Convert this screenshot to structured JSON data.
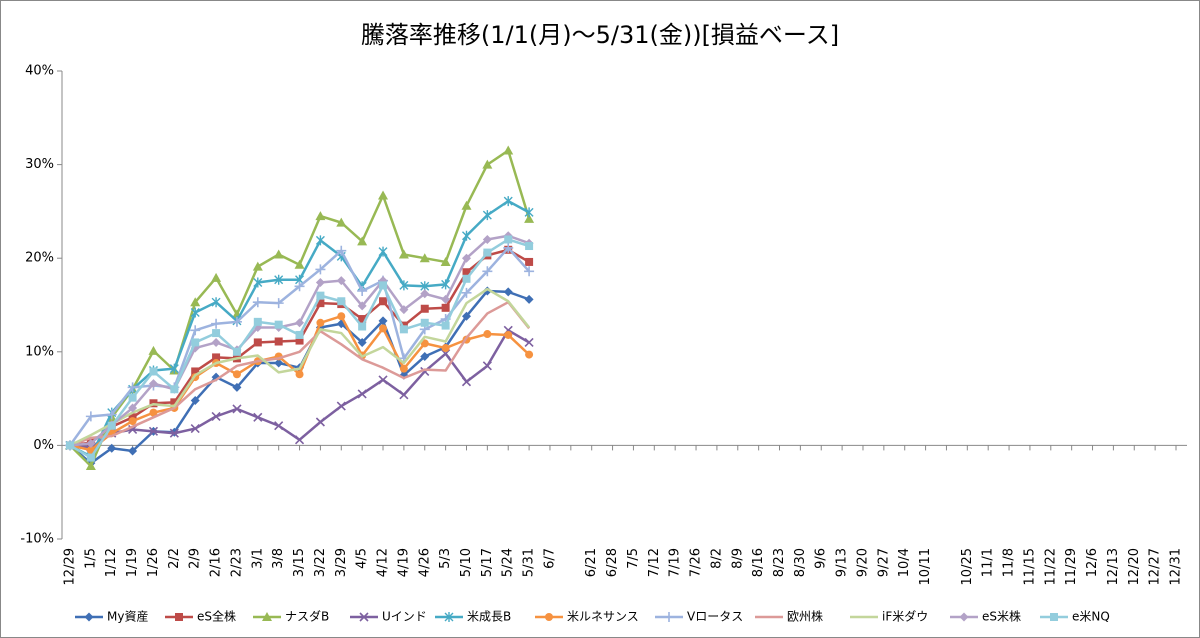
{
  "chart_data": {
    "type": "line",
    "title": "騰落率推移(1/1(月)～5/31(金))[損益ベース]",
    "categories": [
      "12/29",
      "1/5",
      "1/12",
      "1/19",
      "1/26",
      "2/2",
      "2/9",
      "2/16",
      "2/23",
      "3/1",
      "3/8",
      "3/15",
      "3/22",
      "3/29",
      "4/5",
      "4/12",
      "4/19",
      "4/26",
      "5/3",
      "5/10",
      "5/17",
      "5/24",
      "5/31",
      "6/7",
      null,
      "6/21",
      "6/28",
      "7/5",
      "7/12",
      "7/19",
      "7/26",
      "8/2",
      "8/9",
      "8/16",
      "8/23",
      "8/30",
      "9/6",
      "9/13",
      "9/20",
      "9/27",
      "10/4",
      "10/11",
      null,
      "10/25",
      "11/1",
      "11/8",
      "11/15",
      "11/22",
      "11/29",
      "12/6",
      "12/13",
      "12/20",
      "12/27",
      "12/31"
    ],
    "ylim": [
      -10,
      40
    ],
    "yticks": [
      {
        "value": -10,
        "label": "-10%"
      },
      {
        "value": 0,
        "label": "0%"
      },
      {
        "value": 10,
        "label": "10%"
      },
      {
        "value": 20,
        "label": "20%"
      },
      {
        "value": 30,
        "label": "30%"
      },
      {
        "value": 40,
        "label": "40%"
      }
    ],
    "grid": false,
    "legend": "bottom",
    "series": [
      {
        "name": "My資産",
        "color": "#3f6fb5",
        "marker": "diamond",
        "values": [
          0,
          -1.9,
          -0.3,
          -0.6,
          1.5,
          1.4,
          4.8,
          7.3,
          6.2,
          8.8,
          8.8,
          8.3,
          12.6,
          13.0,
          11.0,
          13.3,
          7.5,
          9.5,
          10.5,
          13.8,
          16.5,
          16.4,
          15.6,
          null,
          null,
          null,
          null,
          null,
          null,
          null,
          null,
          null,
          null,
          null,
          null,
          null,
          null,
          null,
          null,
          null,
          null,
          null,
          null,
          null,
          null,
          null,
          null,
          null,
          null,
          null,
          null,
          null,
          null,
          null
        ]
      },
      {
        "name": "eS全株",
        "color": "#be4b48",
        "marker": "square",
        "values": [
          0,
          0.3,
          2.0,
          3.0,
          4.5,
          4.6,
          7.9,
          9.4,
          9.3,
          11.0,
          11.1,
          11.2,
          15.2,
          15.1,
          13.5,
          15.4,
          12.8,
          14.6,
          14.7,
          18.5,
          20.3,
          20.9,
          19.6,
          null,
          null,
          null,
          null,
          null,
          null,
          null,
          null,
          null,
          null,
          null,
          null,
          null,
          null,
          null,
          null,
          null,
          null,
          null,
          null,
          null,
          null,
          null,
          null,
          null,
          null,
          null,
          null,
          null,
          null,
          null
        ]
      },
      {
        "name": "ナスダB",
        "color": "#98b954",
        "marker": "triangle",
        "values": [
          0,
          -2.2,
          3.0,
          6.0,
          10.1,
          8.0,
          15.3,
          17.9,
          14.0,
          19.1,
          20.4,
          19.3,
          24.5,
          23.8,
          21.8,
          26.7,
          20.4,
          20.0,
          19.6,
          25.6,
          30.0,
          31.5,
          24.2,
          null,
          null,
          null,
          null,
          null,
          null,
          null,
          null,
          null,
          null,
          null,
          null,
          null,
          null,
          null,
          null,
          null,
          null,
          null,
          null,
          null,
          null,
          null,
          null,
          null,
          null,
          null,
          null,
          null,
          null,
          null
        ]
      },
      {
        "name": "Uインド",
        "color": "#7d60a0",
        "marker": "x",
        "values": [
          0,
          -0.2,
          1.3,
          1.7,
          1.5,
          1.3,
          1.8,
          3.1,
          3.9,
          3.0,
          2.1,
          0.6,
          2.5,
          4.2,
          5.5,
          7.0,
          5.4,
          7.9,
          9.8,
          6.8,
          8.5,
          12.3,
          11.0,
          null,
          null,
          null,
          null,
          null,
          null,
          null,
          null,
          null,
          null,
          null,
          null,
          null,
          null,
          null,
          null,
          null,
          null,
          null,
          null,
          null,
          null,
          null,
          null,
          null,
          null,
          null,
          null,
          null,
          null,
          null
        ]
      },
      {
        "name": "米成長B",
        "color": "#46aac5",
        "marker": "asterisk",
        "values": [
          0,
          -1.2,
          3.5,
          6.0,
          8.0,
          8.2,
          14.2,
          15.3,
          13.3,
          17.4,
          17.7,
          17.7,
          21.9,
          20.2,
          17.0,
          20.7,
          17.1,
          17.0,
          17.2,
          22.4,
          24.6,
          26.1,
          24.9,
          null,
          null,
          null,
          null,
          null,
          null,
          null,
          null,
          null,
          null,
          null,
          null,
          null,
          null,
          null,
          null,
          null,
          null,
          null,
          null,
          null,
          null,
          null,
          null,
          null,
          null,
          null,
          null,
          null,
          null,
          null
        ]
      },
      {
        "name": "米ルネサンス",
        "color": "#f69240",
        "marker": "circle",
        "values": [
          0,
          -0.5,
          1.3,
          2.6,
          3.5,
          4.0,
          7.3,
          8.8,
          7.6,
          9.0,
          9.5,
          7.6,
          13.1,
          13.8,
          9.6,
          12.5,
          8.2,
          10.9,
          10.4,
          11.3,
          11.9,
          11.8,
          9.7,
          null,
          null,
          null,
          null,
          null,
          null,
          null,
          null,
          null,
          null,
          null,
          null,
          null,
          null,
          null,
          null,
          null,
          null,
          null,
          null,
          null,
          null,
          null,
          null,
          null,
          null,
          null,
          null,
          null,
          null,
          null
        ]
      },
      {
        "name": "Vロータス",
        "color": "#9db3df",
        "marker": "plus",
        "values": [
          0,
          3.1,
          3.3,
          6.2,
          6.4,
          6.2,
          12.3,
          13.0,
          13.2,
          15.3,
          15.2,
          17.0,
          18.8,
          20.8,
          16.5,
          17.6,
          9.3,
          12.4,
          13.5,
          16.3,
          18.6,
          21.1,
          18.6,
          null,
          null,
          null,
          null,
          null,
          null,
          null,
          null,
          null,
          null,
          null,
          null,
          null,
          null,
          null,
          null,
          null,
          null,
          null,
          null,
          null,
          null,
          null,
          null,
          null,
          null,
          null,
          null,
          null,
          null,
          null
        ]
      },
      {
        "name": "欧州株",
        "color": "#dc9a98",
        "marker": "none",
        "values": [
          0,
          0.8,
          1.0,
          2.0,
          3.0,
          4.0,
          6.0,
          7.0,
          8.5,
          9.0,
          9.3,
          10.0,
          12.2,
          10.8,
          9.2,
          8.3,
          7.2,
          8.1,
          8.0,
          11.5,
          14.1,
          15.3,
          12.5,
          null,
          null,
          null,
          null,
          null,
          null,
          null,
          null,
          null,
          null,
          null,
          null,
          null,
          null,
          null,
          null,
          null,
          null,
          null,
          null,
          null,
          null,
          null,
          null,
          null,
          null,
          null,
          null,
          null,
          null,
          null
        ]
      },
      {
        "name": "iF米ダウ",
        "color": "#c3d69b",
        "marker": "none",
        "values": [
          0,
          1.1,
          2.3,
          3.5,
          4.4,
          4.2,
          7.5,
          8.8,
          9.3,
          9.6,
          7.8,
          8.2,
          12.4,
          12.0,
          9.5,
          10.5,
          8.8,
          11.6,
          11.1,
          15.2,
          16.7,
          15.4,
          12.6,
          null,
          null,
          null,
          null,
          null,
          null,
          null,
          null,
          null,
          null,
          null,
          null,
          null,
          null,
          null,
          null,
          null,
          null,
          null,
          null,
          null,
          null,
          null,
          null,
          null,
          null,
          null,
          null,
          null,
          null,
          null
        ]
      },
      {
        "name": "eS米株",
        "color": "#b3a2c7",
        "marker": "diamond",
        "values": [
          0,
          0.2,
          2.2,
          4.0,
          6.6,
          6.0,
          10.4,
          11.0,
          10.2,
          12.6,
          12.6,
          13.1,
          17.4,
          17.6,
          14.9,
          17.6,
          14.5,
          16.2,
          15.6,
          20.0,
          22.0,
          22.4,
          21.6,
          null,
          null,
          null,
          null,
          null,
          null,
          null,
          null,
          null,
          null,
          null,
          null,
          null,
          null,
          null,
          null,
          null,
          null,
          null,
          null,
          null,
          null,
          null,
          null,
          null,
          null,
          null,
          null,
          null,
          null,
          null
        ]
      },
      {
        "name": "e米NQ",
        "color": "#93cddd",
        "marker": "square",
        "values": [
          0,
          -1.3,
          2.1,
          5.1,
          7.9,
          6.0,
          11.0,
          12.0,
          10.0,
          13.2,
          12.9,
          11.8,
          16.0,
          15.4,
          12.7,
          17.1,
          12.4,
          13.1,
          12.8,
          17.8,
          20.6,
          22.0,
          21.3,
          null,
          null,
          null,
          null,
          null,
          null,
          null,
          null,
          null,
          null,
          null,
          null,
          null,
          null,
          null,
          null,
          null,
          null,
          null,
          null,
          null,
          null,
          null,
          null,
          null,
          null,
          null,
          null,
          null,
          null,
          null
        ]
      }
    ]
  }
}
